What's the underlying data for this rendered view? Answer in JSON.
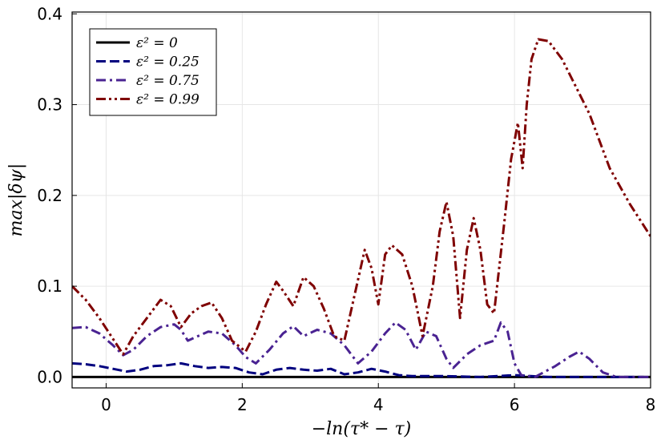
{
  "chart_data": {
    "type": "line",
    "title": "",
    "xlabel": "−ln(τ* − τ)",
    "ylabel": "max|δψ|",
    "xlim": [
      -0.5,
      8
    ],
    "ylim": [
      -0.012,
      0.402
    ],
    "x_ticks": [
      0,
      2,
      4,
      6,
      8
    ],
    "x_tick_labels": [
      "0",
      "2",
      "4",
      "6",
      "8"
    ],
    "y_ticks": [
      0.0,
      0.1,
      0.2,
      0.3,
      0.4
    ],
    "y_tick_labels": [
      "0.0",
      "0.1",
      "0.2",
      "0.3",
      "0.4"
    ],
    "grid": true,
    "legend_position": "top-left",
    "series": [
      {
        "name": "ε² = 0",
        "color": "#000000",
        "dash": "solid",
        "x": [
          -0.5,
          8.0
        ],
        "y": [
          0.0,
          0.0
        ]
      },
      {
        "name": "ε² = 0.25",
        "color": "#00007f",
        "dash": "dash",
        "x": [
          -0.5,
          -0.3,
          -0.1,
          0.1,
          0.3,
          0.5,
          0.7,
          0.9,
          1.1,
          1.3,
          1.5,
          1.7,
          1.9,
          2.1,
          2.3,
          2.5,
          2.7,
          2.9,
          3.1,
          3.3,
          3.5,
          3.7,
          3.9,
          4.1,
          4.3,
          4.5,
          5.0,
          5.5,
          6.0,
          6.5,
          7.0,
          7.5,
          7.9
        ],
        "y": [
          0.015,
          0.014,
          0.012,
          0.009,
          0.006,
          0.008,
          0.012,
          0.013,
          0.015,
          0.012,
          0.01,
          0.011,
          0.01,
          0.005,
          0.003,
          0.008,
          0.01,
          0.008,
          0.007,
          0.009,
          0.003,
          0.005,
          0.009,
          0.006,
          0.002,
          0.001,
          0.001,
          0.0,
          0.002,
          0.0,
          0.0,
          0.0,
          0.0
        ]
      },
      {
        "name": "ε² = 0.75",
        "color": "#4a2392",
        "dash": "dashdot",
        "x": [
          -0.5,
          -0.3,
          -0.1,
          0.1,
          0.25,
          0.4,
          0.6,
          0.8,
          1.0,
          1.1,
          1.2,
          1.35,
          1.5,
          1.7,
          1.9,
          2.05,
          2.2,
          2.4,
          2.6,
          2.75,
          2.9,
          3.1,
          3.3,
          3.5,
          3.7,
          3.9,
          4.1,
          4.25,
          4.4,
          4.55,
          4.7,
          4.85,
          5.0,
          5.1,
          5.3,
          5.5,
          5.7,
          5.8,
          5.9,
          6.0,
          6.1,
          6.3,
          6.6,
          6.8,
          6.95,
          7.1,
          7.3,
          7.5,
          7.8,
          8.0
        ],
        "y": [
          0.054,
          0.055,
          0.048,
          0.035,
          0.024,
          0.03,
          0.045,
          0.055,
          0.058,
          0.052,
          0.04,
          0.045,
          0.05,
          0.048,
          0.035,
          0.022,
          0.015,
          0.03,
          0.048,
          0.056,
          0.045,
          0.052,
          0.048,
          0.035,
          0.015,
          0.028,
          0.048,
          0.06,
          0.052,
          0.03,
          0.05,
          0.045,
          0.02,
          0.01,
          0.025,
          0.035,
          0.04,
          0.06,
          0.05,
          0.015,
          0.002,
          0.0,
          0.012,
          0.022,
          0.028,
          0.02,
          0.005,
          0.0,
          0.0,
          0.0
        ]
      },
      {
        "name": "ε² = 0.99",
        "color": "#7f0000",
        "dash": "dashdotdot",
        "x": [
          -0.5,
          -0.3,
          -0.1,
          0.1,
          0.25,
          0.4,
          0.6,
          0.8,
          0.95,
          1.1,
          1.25,
          1.4,
          1.55,
          1.7,
          1.85,
          2.05,
          2.2,
          2.35,
          2.5,
          2.6,
          2.75,
          2.9,
          3.05,
          3.2,
          3.35,
          3.5,
          3.65,
          3.8,
          3.9,
          4.0,
          4.1,
          4.2,
          4.35,
          4.5,
          4.65,
          4.8,
          4.9,
          5.0,
          5.1,
          5.2,
          5.3,
          5.4,
          5.5,
          5.6,
          5.7,
          5.85,
          5.95,
          6.05,
          6.12,
          6.18,
          6.25,
          6.35,
          6.5,
          6.7,
          6.9,
          7.1,
          7.4,
          7.7,
          8.0
        ],
        "y": [
          0.1,
          0.085,
          0.065,
          0.042,
          0.025,
          0.045,
          0.065,
          0.085,
          0.078,
          0.055,
          0.07,
          0.078,
          0.082,
          0.065,
          0.04,
          0.028,
          0.05,
          0.08,
          0.105,
          0.095,
          0.078,
          0.11,
          0.1,
          0.075,
          0.045,
          0.04,
          0.09,
          0.14,
          0.12,
          0.08,
          0.135,
          0.145,
          0.135,
          0.1,
          0.045,
          0.1,
          0.16,
          0.193,
          0.155,
          0.065,
          0.14,
          0.175,
          0.14,
          0.08,
          0.07,
          0.17,
          0.24,
          0.28,
          0.23,
          0.3,
          0.35,
          0.372,
          0.37,
          0.35,
          0.32,
          0.29,
          0.23,
          0.19,
          0.155
        ]
      }
    ]
  }
}
